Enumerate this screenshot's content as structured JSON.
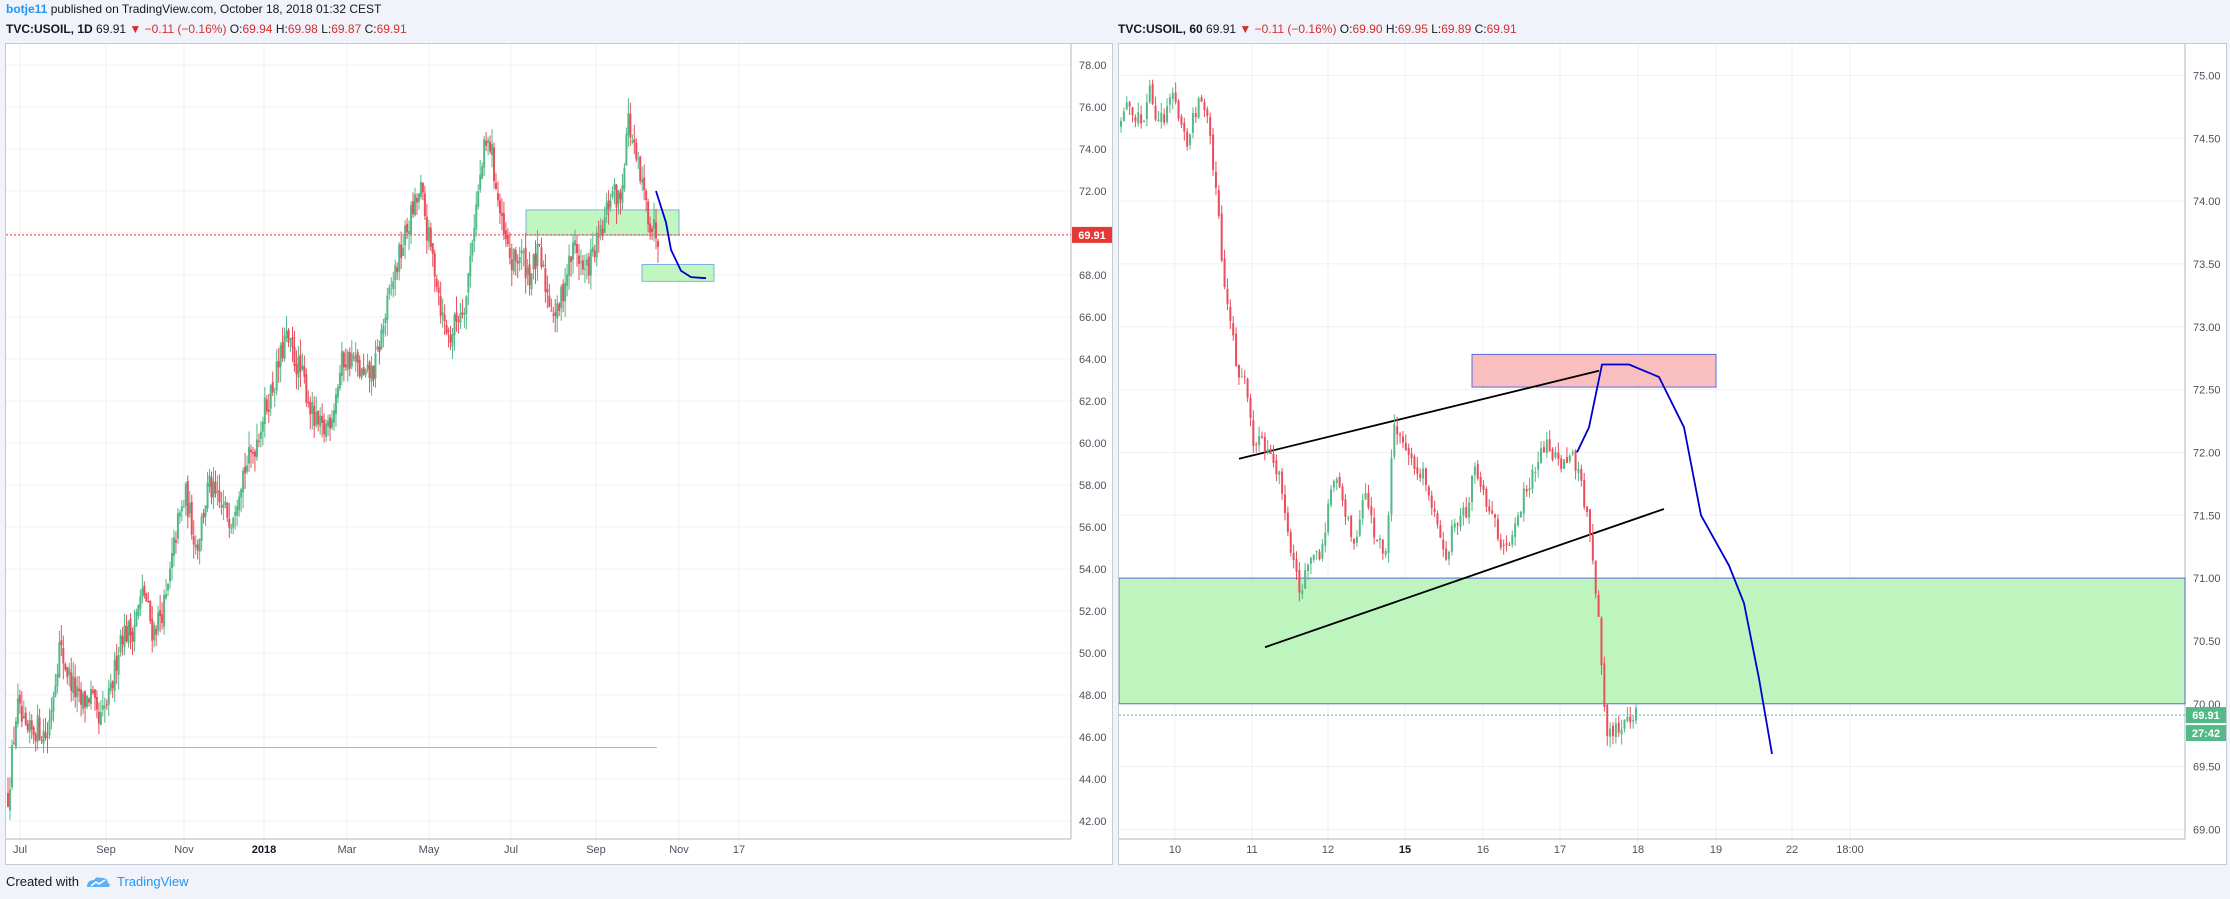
{
  "header": {
    "user": "botje11",
    "published": "published on TradingView.com, October 18, 2018 01:32 CEST"
  },
  "footer": {
    "created_with": "Created with",
    "brand": "TradingView",
    "brand_icon": "tradingview-logo-icon"
  },
  "colors": {
    "up": "#53b987",
    "down": "#eb4d5c",
    "price_line": "#e53935",
    "drawing_blue": "#0000cc",
    "zone_green": "#b7f5b7",
    "zone_red": "#f9b8b8"
  },
  "chart_data": [
    {
      "type": "candlestick",
      "symbol": "TVC:USOIL",
      "interval": "1D",
      "ohlc_line": {
        "symbol": "TVC:USOIL, 1D",
        "last": "69.91",
        "change": "▼ −0.11 (−0.16%)",
        "o_label": "O:",
        "o": "69.94",
        "h_label": "H:",
        "h": "69.98",
        "l_label": "L:",
        "l": "69.87",
        "c_label": "C:",
        "c": "69.91"
      },
      "ylim": [
        41,
        79
      ],
      "y_ticks": [
        "78.00",
        "76.00",
        "74.00",
        "72.00",
        "70.00",
        "68.00",
        "66.00",
        "64.00",
        "62.00",
        "60.00",
        "58.00",
        "56.00",
        "54.00",
        "52.00",
        "50.00",
        "48.00",
        "46.00",
        "44.00",
        "42.00"
      ],
      "x_ticks": [
        "Jul",
        "Sep",
        "Nov",
        "2018",
        "Mar",
        "May",
        "Jul",
        "Sep",
        "Nov",
        "17"
      ],
      "last_price": 69.91,
      "last_price_label": "69.91",
      "close_path": [
        [
          0,
          43.2
        ],
        [
          6,
          47.5
        ],
        [
          12,
          46
        ],
        [
          20,
          46.5
        ],
        [
          26,
          46
        ],
        [
          34,
          50.3
        ],
        [
          40,
          49
        ],
        [
          48,
          47.5
        ],
        [
          55,
          48
        ],
        [
          60,
          46.5
        ],
        [
          68,
          48
        ],
        [
          75,
          51
        ],
        [
          82,
          51
        ],
        [
          90,
          53
        ],
        [
          96,
          51
        ],
        [
          105,
          52.5
        ],
        [
          112,
          56
        ],
        [
          118,
          57.5
        ],
        [
          125,
          55
        ],
        [
          133,
          58
        ],
        [
          140,
          57
        ],
        [
          148,
          56.5
        ],
        [
          155,
          58.5
        ],
        [
          162,
          59.5
        ],
        [
          170,
          61.5
        ],
        [
          177,
          63
        ],
        [
          184,
          65
        ],
        [
          190,
          64
        ],
        [
          196,
          63
        ],
        [
          203,
          61
        ],
        [
          209,
          60.5
        ],
        [
          215,
          61.5
        ],
        [
          222,
          64
        ],
        [
          229,
          64
        ],
        [
          236,
          63
        ],
        [
          243,
          63.5
        ],
        [
          250,
          66
        ],
        [
          256,
          68
        ],
        [
          262,
          69.5
        ],
        [
          268,
          71
        ],
        [
          274,
          72
        ],
        [
          278,
          70
        ],
        [
          284,
          68
        ],
        [
          288,
          66
        ],
        [
          293,
          65
        ],
        [
          298,
          66
        ],
        [
          304,
          67
        ],
        [
          308,
          70
        ],
        [
          312,
          72
        ],
        [
          316,
          74
        ],
        [
          320,
          74.2
        ],
        [
          324,
          72
        ],
        [
          328,
          70
        ],
        [
          334,
          68.5
        ],
        [
          340,
          69
        ],
        [
          346,
          68
        ],
        [
          352,
          69
        ],
        [
          358,
          67
        ],
        [
          364,
          66
        ],
        [
          370,
          68
        ],
        [
          376,
          69.5
        ],
        [
          382,
          68
        ],
        [
          388,
          69
        ],
        [
          394,
          70
        ],
        [
          400,
          72
        ],
        [
          406,
          71.5
        ],
        [
          411,
          75.5
        ],
        [
          416,
          73.5
        ],
        [
          421,
          72
        ],
        [
          426,
          70.5
        ],
        [
          431,
          69.9
        ]
      ],
      "drawings": {
        "green_zone_upper": [
          69.9,
          71.1
        ],
        "green_zone_lower": [
          67.7,
          68.5
        ],
        "orange_hline": 45.5,
        "projection": [
          [
            70.5,
            72
          ],
          [
            71.5,
            70.5
          ],
          [
            72,
            69.2
          ],
          [
            73,
            68.2
          ],
          [
            74,
            67.9
          ],
          [
            75.5,
            67.85
          ]
        ]
      }
    },
    {
      "type": "candlestick",
      "symbol": "TVC:USOIL",
      "interval": "60",
      "ohlc_line": {
        "symbol": "TVC:USOIL, 60",
        "last": "69.91",
        "change": "▼ −0.11 (−0.16%)",
        "o_label": "O:",
        "o": "69.90",
        "h_label": "H:",
        "h": "69.95",
        "l_label": "L:",
        "l": "69.89",
        "c_label": "C:",
        "c": "69.91"
      },
      "ylim": [
        68.9,
        75.25
      ],
      "y_ticks": [
        "75.00",
        "74.50",
        "74.00",
        "73.50",
        "73.00",
        "72.50",
        "72.00",
        "71.50",
        "71.00",
        "70.50",
        "70.00",
        "69.50",
        "69.00"
      ],
      "x_ticks": [
        "10",
        "11",
        "12",
        "15",
        "16",
        "17",
        "18",
        "19",
        "22",
        "18:00"
      ],
      "last_price": 69.91,
      "last_price_label": "69.91",
      "countdown_label": "27:42",
      "close_path": [
        [
          0,
          74.6
        ],
        [
          5,
          74.8
        ],
        [
          10,
          74.7
        ],
        [
          15,
          74.65
        ],
        [
          20,
          74.9
        ],
        [
          25,
          74.6
        ],
        [
          30,
          74.7
        ],
        [
          35,
          74.8
        ],
        [
          40,
          74.65
        ],
        [
          45,
          74.5
        ],
        [
          50,
          74.7
        ],
        [
          55,
          74.8
        ],
        [
          60,
          74.6
        ],
        [
          65,
          74.0
        ],
        [
          70,
          73.4
        ],
        [
          75,
          73.0
        ],
        [
          80,
          72.6
        ],
        [
          85,
          72.6
        ],
        [
          90,
          72.0
        ],
        [
          95,
          72.1
        ],
        [
          100,
          72.0
        ],
        [
          105,
          71.9
        ],
        [
          110,
          71.7
        ],
        [
          115,
          71.3
        ],
        [
          118,
          71.05
        ],
        [
          122,
          70.9
        ],
        [
          126,
          71.1
        ],
        [
          130,
          71.1
        ],
        [
          135,
          71.2
        ],
        [
          140,
          71.5
        ],
        [
          145,
          71.85
        ],
        [
          150,
          71.7
        ],
        [
          155,
          71.4
        ],
        [
          160,
          71.3
        ],
        [
          165,
          71.7
        ],
        [
          170,
          71.45
        ],
        [
          175,
          71.3
        ],
        [
          180,
          71.2
        ],
        [
          185,
          72.2
        ],
        [
          190,
          72.1
        ],
        [
          195,
          72.0
        ],
        [
          200,
          71.8
        ],
        [
          205,
          71.85
        ],
        [
          210,
          71.6
        ],
        [
          215,
          71.4
        ],
        [
          220,
          71.1
        ],
        [
          225,
          71.4
        ],
        [
          230,
          71.5
        ],
        [
          235,
          71.55
        ],
        [
          240,
          71.9
        ],
        [
          245,
          71.7
        ],
        [
          250,
          71.6
        ],
        [
          255,
          71.4
        ],
        [
          260,
          71.2
        ],
        [
          265,
          71.3
        ],
        [
          270,
          71.5
        ],
        [
          275,
          71.7
        ],
        [
          280,
          71.85
        ],
        [
          285,
          72.0
        ],
        [
          290,
          72.1
        ],
        [
          295,
          71.95
        ],
        [
          300,
          71.9
        ],
        [
          305,
          72.0
        ],
        [
          310,
          71.9
        ],
        [
          315,
          71.6
        ],
        [
          320,
          71.2
        ],
        [
          325,
          70.6
        ],
        [
          330,
          69.8
        ],
        [
          335,
          69.8
        ],
        [
          340,
          69.85
        ],
        [
          345,
          69.9
        ],
        [
          350,
          69.91
        ]
      ],
      "drawings": {
        "green_zone": [
          70.0,
          71.0
        ],
        "red_zone": [
          72.52,
          72.78
        ],
        "channel_upper": [
          [
            10.75,
            71.95
          ],
          [
            17.45,
            72.65
          ]
        ],
        "channel_lower": [
          [
            11.1,
            70.45
          ],
          [
            18.35,
            71.55
          ]
        ],
        "projection": [
          [
            17.45,
            72.0
          ],
          [
            17.7,
            72.2
          ],
          [
            17.95,
            72.7
          ],
          [
            18.2,
            72.7
          ],
          [
            18.55,
            72.6
          ],
          [
            18.8,
            72.2
          ],
          [
            19.0,
            71.5
          ],
          [
            19.25,
            71.1
          ],
          [
            19.5,
            70.8
          ],
          [
            19.75,
            70.2
          ],
          [
            20.0,
            69.6
          ]
        ]
      }
    }
  ]
}
